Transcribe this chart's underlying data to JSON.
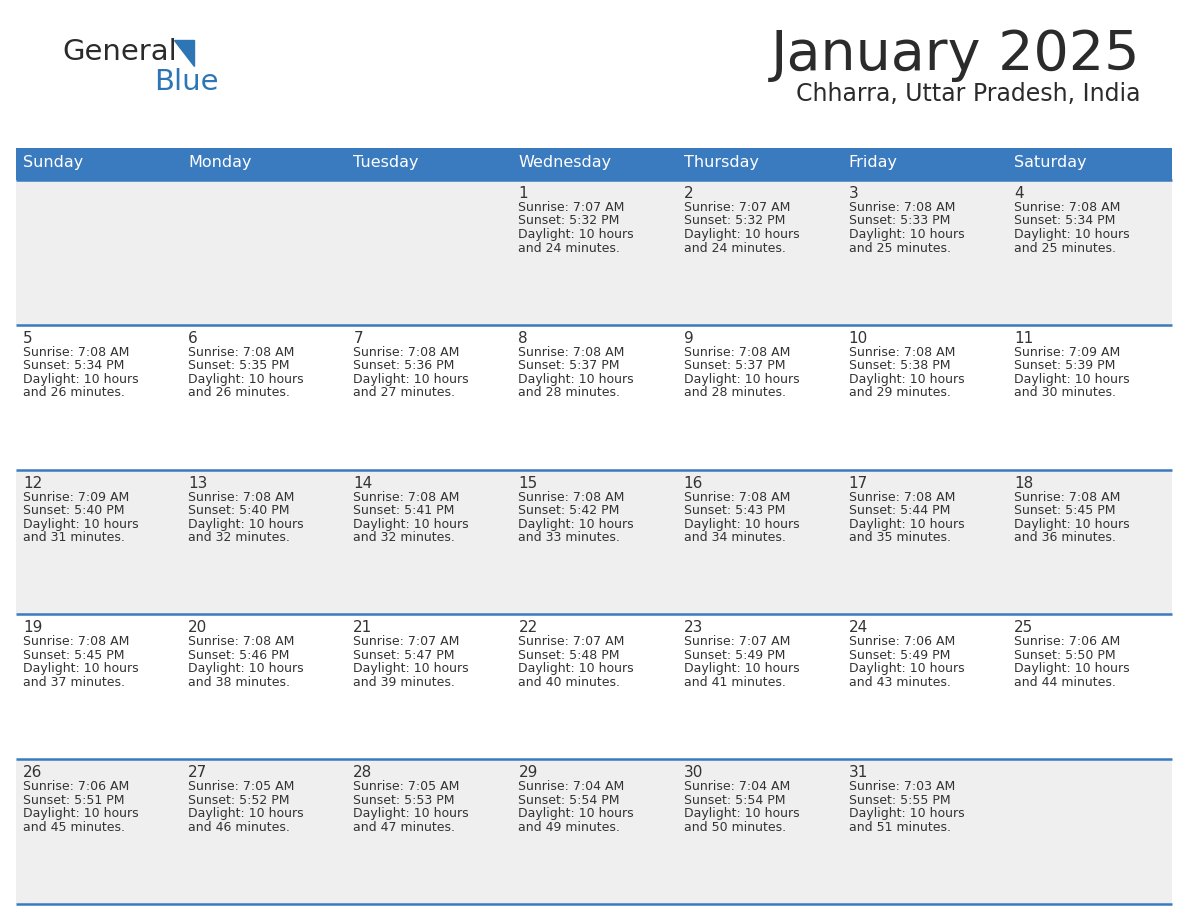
{
  "title": "January 2025",
  "subtitle": "Chharra, Uttar Pradesh, India",
  "header_bg_color": "#3a7abf",
  "header_text_color": "#ffffff",
  "cell_bg_even": "#efefef",
  "cell_bg_odd": "#ffffff",
  "border_color": "#3a7abf",
  "text_color": "#333333",
  "days_of_week": [
    "Sunday",
    "Monday",
    "Tuesday",
    "Wednesday",
    "Thursday",
    "Friday",
    "Saturday"
  ],
  "calendar_data": [
    [
      {
        "day": "",
        "sunrise": "",
        "sunset": "",
        "daylight": ""
      },
      {
        "day": "",
        "sunrise": "",
        "sunset": "",
        "daylight": ""
      },
      {
        "day": "",
        "sunrise": "",
        "sunset": "",
        "daylight": ""
      },
      {
        "day": "1",
        "sunrise": "7:07 AM",
        "sunset": "5:32 PM",
        "daylight_min": "24"
      },
      {
        "day": "2",
        "sunrise": "7:07 AM",
        "sunset": "5:32 PM",
        "daylight_min": "24"
      },
      {
        "day": "3",
        "sunrise": "7:08 AM",
        "sunset": "5:33 PM",
        "daylight_min": "25"
      },
      {
        "day": "4",
        "sunrise": "7:08 AM",
        "sunset": "5:34 PM",
        "daylight_min": "25"
      }
    ],
    [
      {
        "day": "5",
        "sunrise": "7:08 AM",
        "sunset": "5:34 PM",
        "daylight_min": "26"
      },
      {
        "day": "6",
        "sunrise": "7:08 AM",
        "sunset": "5:35 PM",
        "daylight_min": "26"
      },
      {
        "day": "7",
        "sunrise": "7:08 AM",
        "sunset": "5:36 PM",
        "daylight_min": "27"
      },
      {
        "day": "8",
        "sunrise": "7:08 AM",
        "sunset": "5:37 PM",
        "daylight_min": "28"
      },
      {
        "day": "9",
        "sunrise": "7:08 AM",
        "sunset": "5:37 PM",
        "daylight_min": "28"
      },
      {
        "day": "10",
        "sunrise": "7:08 AM",
        "sunset": "5:38 PM",
        "daylight_min": "29"
      },
      {
        "day": "11",
        "sunrise": "7:09 AM",
        "sunset": "5:39 PM",
        "daylight_min": "30"
      }
    ],
    [
      {
        "day": "12",
        "sunrise": "7:09 AM",
        "sunset": "5:40 PM",
        "daylight_min": "31"
      },
      {
        "day": "13",
        "sunrise": "7:08 AM",
        "sunset": "5:40 PM",
        "daylight_min": "32"
      },
      {
        "day": "14",
        "sunrise": "7:08 AM",
        "sunset": "5:41 PM",
        "daylight_min": "32"
      },
      {
        "day": "15",
        "sunrise": "7:08 AM",
        "sunset": "5:42 PM",
        "daylight_min": "33"
      },
      {
        "day": "16",
        "sunrise": "7:08 AM",
        "sunset": "5:43 PM",
        "daylight_min": "34"
      },
      {
        "day": "17",
        "sunrise": "7:08 AM",
        "sunset": "5:44 PM",
        "daylight_min": "35"
      },
      {
        "day": "18",
        "sunrise": "7:08 AM",
        "sunset": "5:45 PM",
        "daylight_min": "36"
      }
    ],
    [
      {
        "day": "19",
        "sunrise": "7:08 AM",
        "sunset": "5:45 PM",
        "daylight_min": "37"
      },
      {
        "day": "20",
        "sunrise": "7:08 AM",
        "sunset": "5:46 PM",
        "daylight_min": "38"
      },
      {
        "day": "21",
        "sunrise": "7:07 AM",
        "sunset": "5:47 PM",
        "daylight_min": "39"
      },
      {
        "day": "22",
        "sunrise": "7:07 AM",
        "sunset": "5:48 PM",
        "daylight_min": "40"
      },
      {
        "day": "23",
        "sunrise": "7:07 AM",
        "sunset": "5:49 PM",
        "daylight_min": "41"
      },
      {
        "day": "24",
        "sunrise": "7:06 AM",
        "sunset": "5:49 PM",
        "daylight_min": "43"
      },
      {
        "day": "25",
        "sunrise": "7:06 AM",
        "sunset": "5:50 PM",
        "daylight_min": "44"
      }
    ],
    [
      {
        "day": "26",
        "sunrise": "7:06 AM",
        "sunset": "5:51 PM",
        "daylight_min": "45"
      },
      {
        "day": "27",
        "sunrise": "7:05 AM",
        "sunset": "5:52 PM",
        "daylight_min": "46"
      },
      {
        "day": "28",
        "sunrise": "7:05 AM",
        "sunset": "5:53 PM",
        "daylight_min": "47"
      },
      {
        "day": "29",
        "sunrise": "7:04 AM",
        "sunset": "5:54 PM",
        "daylight_min": "49"
      },
      {
        "day": "30",
        "sunrise": "7:04 AM",
        "sunset": "5:54 PM",
        "daylight_min": "50"
      },
      {
        "day": "31",
        "sunrise": "7:03 AM",
        "sunset": "5:55 PM",
        "daylight_min": "51"
      },
      {
        "day": "",
        "sunrise": "",
        "sunset": "",
        "daylight_min": ""
      }
    ]
  ]
}
